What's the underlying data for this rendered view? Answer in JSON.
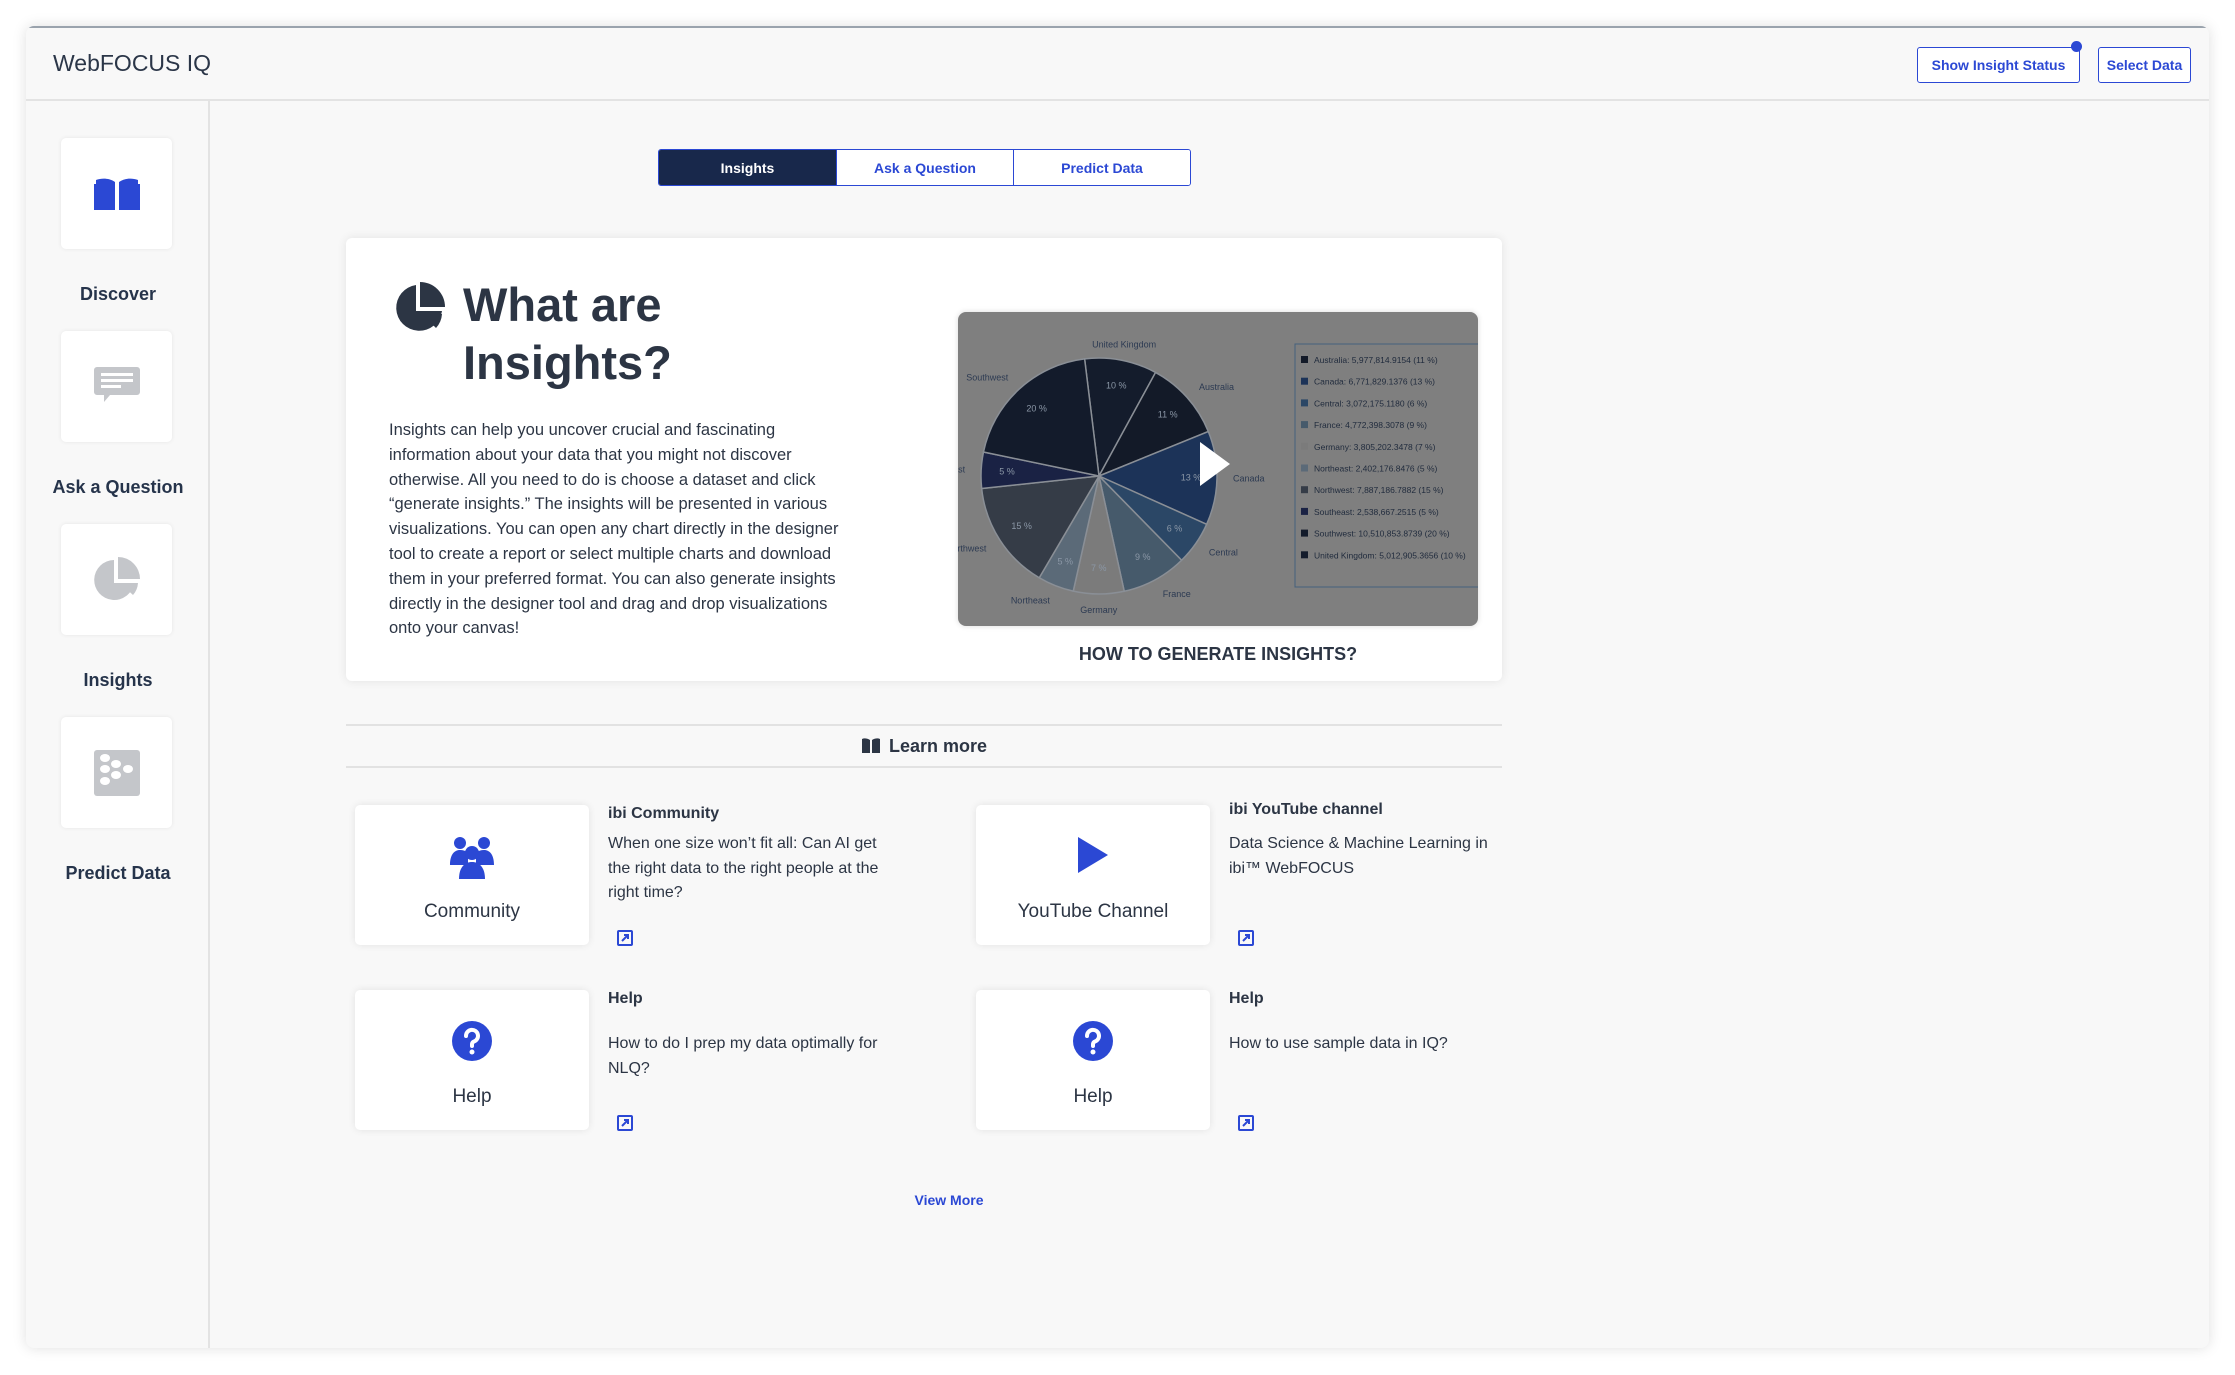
{
  "app": {
    "title": "WebFOCUS IQ"
  },
  "header": {
    "show_insight_status": "Show Insight Status",
    "select_data": "Select Data",
    "accent": "#2b48d4"
  },
  "sidebar": {
    "items": [
      {
        "label": "Discover",
        "icon": "book-open-icon",
        "active": true
      },
      {
        "label": "Ask a Question",
        "icon": "chat-bubble-icon"
      },
      {
        "label": "Insights",
        "icon": "pie-chart-icon"
      },
      {
        "label": "Predict Data",
        "icon": "dots-grid-icon"
      }
    ]
  },
  "tabs": [
    {
      "label": "Insights",
      "active": true
    },
    {
      "label": "Ask a Question"
    },
    {
      "label": "Predict Data"
    }
  ],
  "intro": {
    "title_line1": "What are",
    "title_line2": "Insights?",
    "body": "Insights can help you uncover crucial and fascinating information about your data that you might not discover otherwise. All you need to do is choose a dataset and click “generate insights.” The insights will be presented in various visualizations. You can open any chart directly in the designer tool to create a report or select multiple charts and download them in your preferred format. You can also generate insights directly in the designer tool and drag and drop visualizations onto your canvas!",
    "video_caption": "HOW TO GENERATE INSIGHTS?",
    "video_thumbnail": {
      "slices": [
        {
          "name": "United Kingdom",
          "pct": 10,
          "label": "10 %",
          "color": "#141c2c"
        },
        {
          "name": "Australia",
          "pct": 11,
          "label": "11 %",
          "color": "#131a28"
        },
        {
          "name": "Canada",
          "pct": 13,
          "label": "13 %",
          "color": "#1c3358"
        },
        {
          "name": "Central",
          "pct": 6,
          "label": "6 %",
          "color": "#2b4766"
        },
        {
          "name": "France",
          "pct": 9,
          "label": "9 %",
          "color": "#465a6b"
        },
        {
          "name": "Germany",
          "pct": 7,
          "label": "7 %",
          "color": "#7b7b7b"
        },
        {
          "name": "Northeast",
          "pct": 5,
          "label": "5 %",
          "color": "#5b6a78"
        },
        {
          "name": "Northwest",
          "pct": 15,
          "label": "15 %",
          "color": "#353c47"
        },
        {
          "name": "Southeast",
          "pct": 5,
          "label": "5 %",
          "color": "#1a2244"
        },
        {
          "name": "Southwest",
          "pct": 20,
          "label": "20 %",
          "color": "#131b2b"
        }
      ],
      "legend": [
        "Australia: 5,977,814.9154 (11 %)",
        "Canada: 6,771,829.1376 (13 %)",
        "Central: 3,072,175.1180 (6 %)",
        "France: 4,772,398.3078 (9 %)",
        "Germany: 3,805,202.3478 (7 %)",
        "Northeast: 2,402,176.8476 (5 %)",
        "Northwest: 7,887,186.7882 (15 %)",
        "Southeast: 2,538,667.2515 (5 %)",
        "Southwest: 10,510,853.8739 (20 %)",
        "United Kingdom: 5,012,905.3656 (10 %)"
      ],
      "legend_colors": [
        "#131a28",
        "#1c3358",
        "#2b4766",
        "#465a6b",
        "#7b7b7b",
        "#5b6a78",
        "#353c47",
        "#1a2244",
        "#131b2b",
        "#141c2c"
      ]
    }
  },
  "learn_more": {
    "title": "Learn more",
    "resources": [
      {
        "card_label": "Community",
        "icon": "community-icon",
        "title": "ibi Community",
        "desc": "When one size won’t fit all: Can AI get the right data to the right people at the right time?"
      },
      {
        "card_label": "YouTube Channel",
        "icon": "play-icon",
        "title": "ibi YouTube channel",
        "desc": "Data Science & Machine Learning in ibi™ WebFOCUS"
      },
      {
        "card_label": "Help",
        "icon": "help-icon",
        "title": "Help",
        "desc": "How to do I prep my data optimally for NLQ?"
      },
      {
        "card_label": "Help",
        "icon": "help-icon",
        "title": "Help",
        "desc": "How to use sample data in IQ?"
      }
    ],
    "view_more": "View More"
  }
}
